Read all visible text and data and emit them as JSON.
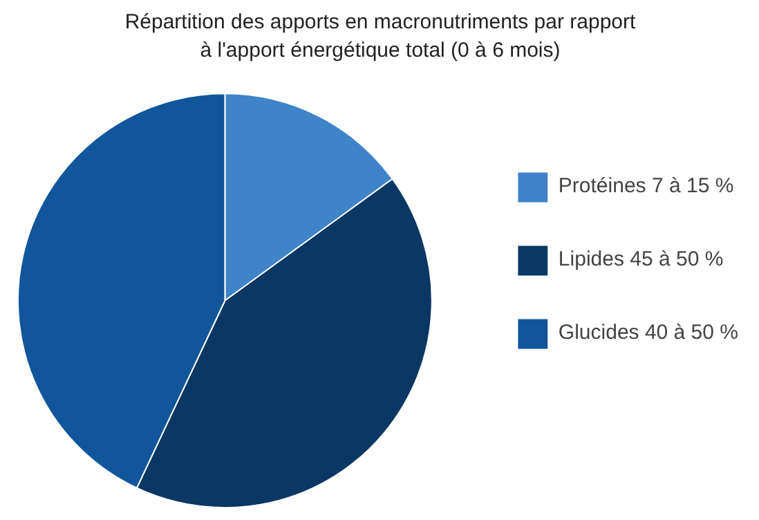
{
  "chart_data": {
    "type": "pie",
    "title": "Répartition des apports en macronutriments par rapport\nà l'apport énergétique total (0 à 6 mois)",
    "categories": [
      "Protéines 7 à 15 %",
      "Lipides 45 à 50 %",
      "Glucides 40 à 50 %"
    ],
    "values": [
      15,
      42,
      43
    ],
    "colors": [
      "#3f83c9",
      "#0a3764",
      "#11569b"
    ],
    "legend": "right"
  }
}
